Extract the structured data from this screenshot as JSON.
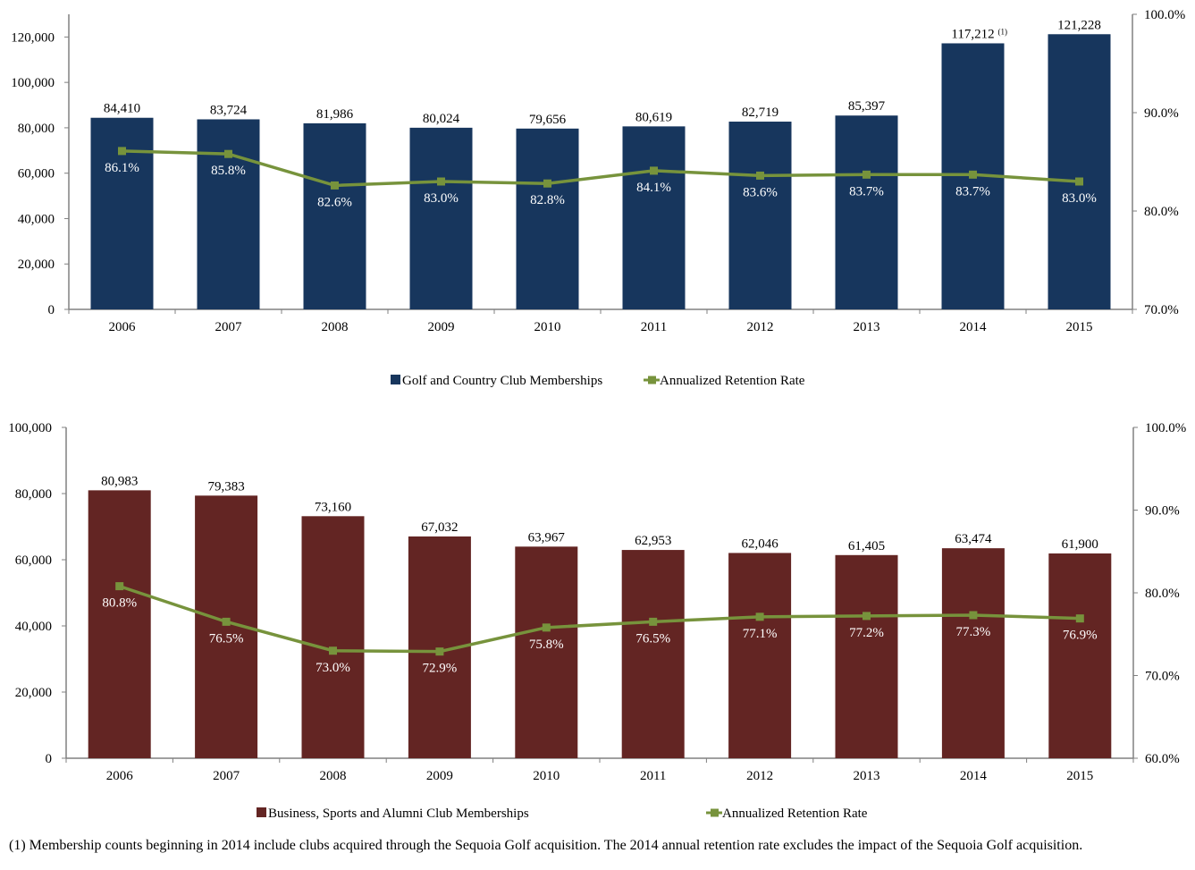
{
  "colors": {
    "golf_bar": "#17365d",
    "business_bar": "#632523",
    "line": "#77933c",
    "axis": "#808080"
  },
  "chart_data": [
    {
      "type": "bar",
      "categories": [
        "2006",
        "2007",
        "2008",
        "2009",
        "2010",
        "2011",
        "2012",
        "2013",
        "2014",
        "2015"
      ],
      "series": [
        {
          "name": "Golf and Country Club Memberships",
          "type": "bar",
          "axis": "left",
          "values": [
            84410,
            83724,
            81986,
            80024,
            79656,
            80619,
            82719,
            85397,
            117212,
            121228
          ],
          "labels": [
            "84,410",
            "83,724",
            "81,986",
            "80,024",
            "79,656",
            "80,619",
            "82,719",
            "85,397",
            "117,212",
            "121,228"
          ]
        },
        {
          "name": "Annualized Retention Rate",
          "type": "line",
          "axis": "right",
          "values": [
            86.1,
            85.8,
            82.6,
            83.0,
            82.8,
            84.1,
            83.6,
            83.7,
            83.7,
            83.0
          ],
          "labels": [
            "86.1%",
            "85.8%",
            "82.6%",
            "83.0%",
            "82.8%",
            "84.1%",
            "83.6%",
            "83.7%",
            "83.7%",
            "83.0%"
          ]
        }
      ],
      "annotations": [
        {
          "category": "2014",
          "text": "(1)"
        }
      ],
      "ylim": [
        0,
        130000
      ],
      "y_ticks": [
        "0",
        "20,000",
        "40,000",
        "60,000",
        "80,000",
        "100,000",
        "120,000"
      ],
      "y_tick_values": [
        0,
        20000,
        40000,
        60000,
        80000,
        100000,
        120000
      ],
      "y2lim": [
        70,
        100
      ],
      "y2_ticks": [
        "70.0%",
        "80.0%",
        "90.0%",
        "100.0%"
      ],
      "y2_tick_values": [
        70,
        80,
        90,
        100
      ],
      "legend_position": "bottom",
      "grid": false
    },
    {
      "type": "bar",
      "categories": [
        "2006",
        "2007",
        "2008",
        "2009",
        "2010",
        "2011",
        "2012",
        "2013",
        "2014",
        "2015"
      ],
      "series": [
        {
          "name": "Business, Sports and Alumni Club Memberships",
          "type": "bar",
          "axis": "left",
          "values": [
            80983,
            79383,
            73160,
            67032,
            63967,
            62953,
            62046,
            61405,
            63474,
            61900
          ],
          "labels": [
            "80,983",
            "79,383",
            "73,160",
            "67,032",
            "63,967",
            "62,953",
            "62,046",
            "61,405",
            "63,474",
            "61,900"
          ]
        },
        {
          "name": "Annualized Retention Rate",
          "type": "line",
          "axis": "right",
          "values": [
            80.8,
            76.5,
            73.0,
            72.9,
            75.8,
            76.5,
            77.1,
            77.2,
            77.3,
            76.9
          ],
          "labels": [
            "80.8%",
            "76.5%",
            "73.0%",
            "72.9%",
            "75.8%",
            "76.5%",
            "77.1%",
            "77.2%",
            "77.3%",
            "76.9%"
          ]
        }
      ],
      "ylim": [
        0,
        100000
      ],
      "y_ticks": [
        "0",
        "20,000",
        "40,000",
        "60,000",
        "80,000",
        "100,000"
      ],
      "y_tick_values": [
        0,
        20000,
        40000,
        60000,
        80000,
        100000
      ],
      "y2lim": [
        60,
        100
      ],
      "y2_ticks": [
        "60.0%",
        "70.0%",
        "80.0%",
        "90.0%",
        "100.0%"
      ],
      "y2_tick_values": [
        60,
        70,
        80,
        90,
        100
      ],
      "legend_position": "bottom",
      "grid": false
    }
  ],
  "footnote": "(1)   Membership counts beginning in 2014 include clubs acquired through the Sequoia Golf acquisition.  The 2014 annual retention rate excludes the impact of the Sequoia Golf acquisition."
}
